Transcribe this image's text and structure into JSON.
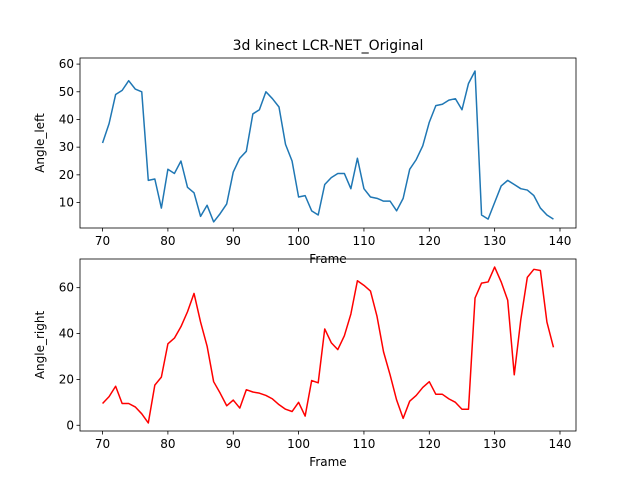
{
  "chart_data": [
    {
      "type": "line",
      "title": "3d kinect LCR-NET_Original",
      "xlabel": "Frame",
      "ylabel": "Angle_left",
      "xlim": [
        66.55,
        142.45
      ],
      "ylim": [
        0.8,
        62.2
      ],
      "xticks": [
        70,
        80,
        90,
        100,
        110,
        120,
        130,
        140
      ],
      "yticks": [
        10,
        20,
        30,
        40,
        50,
        60
      ],
      "grid": false,
      "series": [
        {
          "color": "#1f77b4",
          "x": [
            70,
            71,
            72,
            73,
            74,
            75,
            76,
            77,
            78,
            79,
            80,
            81,
            82,
            83,
            84,
            85,
            86,
            87,
            88,
            89,
            90,
            91,
            92,
            93,
            94,
            95,
            96,
            97,
            98,
            99,
            100,
            101,
            102,
            103,
            104,
            105,
            106,
            107,
            108,
            109,
            110,
            111,
            112,
            113,
            114,
            115,
            116,
            117,
            118,
            119,
            120,
            121,
            122,
            123,
            124,
            125,
            126,
            127,
            128,
            129,
            130,
            131,
            132,
            133,
            134,
            135,
            136,
            137,
            138,
            139
          ],
          "y": [
            31.5,
            38.5,
            49,
            50.5,
            54,
            51,
            50,
            18,
            18.5,
            8,
            22,
            20.5,
            25,
            15.5,
            13.5,
            5,
            9,
            3,
            6,
            9.5,
            21,
            26,
            28.5,
            42,
            43.5,
            50,
            47.5,
            44.5,
            31,
            25,
            12,
            12.5,
            7,
            5.5,
            16.5,
            19,
            20.5,
            20.5,
            15,
            26,
            15,
            12,
            11.5,
            10.5,
            10.5,
            7,
            11.5,
            22,
            25.5,
            30.5,
            39,
            45,
            45.5,
            47,
            47.5,
            43.5,
            53,
            57.5,
            5.5,
            4,
            10,
            16,
            18,
            16.5,
            15,
            14.5,
            12.5,
            8,
            5.5,
            4
          ]
        }
      ]
    },
    {
      "type": "line",
      "title": "",
      "xlabel": "Frame",
      "ylabel": "Angle_right",
      "xlim": [
        66.55,
        142.45
      ],
      "ylim": [
        -2.5,
        72.5
      ],
      "xticks": [
        70,
        80,
        90,
        100,
        110,
        120,
        130,
        140
      ],
      "yticks": [
        0,
        20,
        40,
        60
      ],
      "grid": false,
      "series": [
        {
          "color": "#ff0000",
          "x": [
            70,
            71,
            72,
            73,
            74,
            75,
            76,
            77,
            78,
            79,
            80,
            81,
            82,
            83,
            84,
            85,
            86,
            87,
            88,
            89,
            90,
            91,
            92,
            93,
            94,
            95,
            96,
            97,
            98,
            99,
            100,
            101,
            102,
            103,
            104,
            105,
            106,
            107,
            108,
            109,
            110,
            111,
            112,
            113,
            114,
            115,
            116,
            117,
            118,
            119,
            120,
            121,
            122,
            123,
            124,
            125,
            126,
            127,
            128,
            129,
            130,
            131,
            132,
            133,
            134,
            135,
            136,
            137,
            138,
            139
          ],
          "y": [
            9.5,
            12.5,
            17,
            9.5,
            9.5,
            8,
            5,
            1,
            17.5,
            21,
            35.5,
            38,
            43,
            49.5,
            57.5,
            45,
            34.5,
            19,
            14,
            8.5,
            11,
            7.5,
            15.5,
            14.5,
            14,
            13,
            11.5,
            9,
            7,
            6,
            10,
            4,
            19.5,
            18.5,
            42,
            36,
            33,
            39,
            48.5,
            63,
            61,
            58.5,
            47.5,
            32,
            22,
            11,
            3,
            10.5,
            13,
            16.5,
            19,
            13.5,
            13.5,
            11.5,
            10,
            7,
            7,
            55.5,
            62,
            62.5,
            69,
            62.5,
            54.5,
            22,
            46,
            64.5,
            68,
            67.5,
            45,
            34
          ]
        }
      ]
    }
  ]
}
